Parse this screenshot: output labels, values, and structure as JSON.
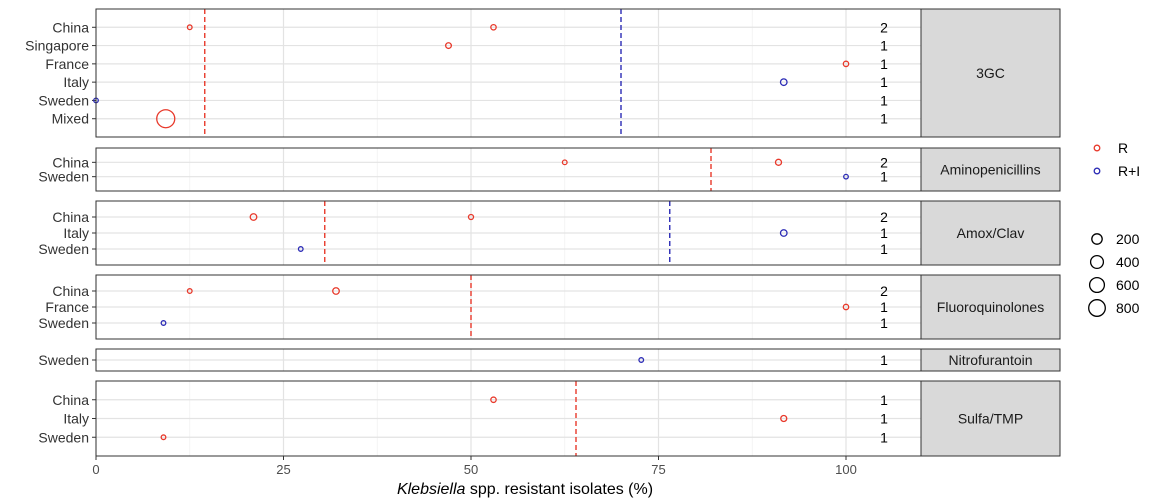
{
  "chart_data": {
    "type": "scatter",
    "xlabel_italic": "Klebsiella",
    "xlabel_rest": " spp. resistant isolates (%)",
    "xlim": [
      0,
      110
    ],
    "xticks": [
      0,
      25,
      50,
      75,
      100
    ],
    "grid": true,
    "legend_placement": "right",
    "colors": {
      "R": "#E8392B",
      "R+I": "#2B2BB5"
    },
    "series_legend": [
      "R",
      "R+I"
    ],
    "size_legend": [
      200,
      400,
      600,
      800
    ],
    "panels": [
      {
        "label": "3GC",
        "rows": [
          "China",
          "Singapore",
          "France",
          "Italy",
          "Sweden",
          "Mixed"
        ],
        "counts": [
          "2",
          "1",
          "1",
          "1",
          "1",
          "1"
        ],
        "ref_lines": [
          {
            "series": "R",
            "x": 14.5
          },
          {
            "series": "R+I",
            "x": 70.0
          }
        ],
        "points": [
          {
            "row": "China",
            "series": "R",
            "x": 12.5,
            "n": 60
          },
          {
            "row": "China",
            "series": "R",
            "x": 53.0,
            "n": 80
          },
          {
            "row": "Singapore",
            "series": "R",
            "x": 47.0,
            "n": 90
          },
          {
            "row": "France",
            "series": "R",
            "x": 100.0,
            "n": 80
          },
          {
            "row": "Italy",
            "series": "R+I",
            "x": 91.7,
            "n": 120
          },
          {
            "row": "Sweden",
            "series": "R+I",
            "x": 0.0,
            "n": 30
          },
          {
            "row": "Mixed",
            "series": "R",
            "x": 9.3,
            "n": 900
          }
        ]
      },
      {
        "label": "Aminopenicillins",
        "rows": [
          "China",
          "Sweden"
        ],
        "counts": [
          "2",
          "1"
        ],
        "ref_lines": [
          {
            "series": "R",
            "x": 82.0
          }
        ],
        "points": [
          {
            "row": "China",
            "series": "R",
            "x": 62.5,
            "n": 60
          },
          {
            "row": "China",
            "series": "R",
            "x": 91.0,
            "n": 100
          },
          {
            "row": "Sweden",
            "series": "R+I",
            "x": 100.0,
            "n": 30
          }
        ]
      },
      {
        "label": "Amox/Clav",
        "rows": [
          "China",
          "Italy",
          "Sweden"
        ],
        "counts": [
          "2",
          "1",
          "1"
        ],
        "ref_lines": [
          {
            "series": "R",
            "x": 30.5
          },
          {
            "series": "R+I",
            "x": 76.5
          }
        ],
        "points": [
          {
            "row": "China",
            "series": "R",
            "x": 21.0,
            "n": 120
          },
          {
            "row": "China",
            "series": "R",
            "x": 50.0,
            "n": 70
          },
          {
            "row": "Italy",
            "series": "R+I",
            "x": 91.7,
            "n": 120
          },
          {
            "row": "Sweden",
            "series": "R+I",
            "x": 27.3,
            "n": 40
          }
        ]
      },
      {
        "label": "Fluoroquinolones",
        "rows": [
          "China",
          "France",
          "Sweden"
        ],
        "counts": [
          "2",
          "1",
          "1"
        ],
        "ref_lines": [
          {
            "series": "R",
            "x": 50.0
          }
        ],
        "points": [
          {
            "row": "China",
            "series": "R",
            "x": 12.5,
            "n": 60
          },
          {
            "row": "China",
            "series": "R",
            "x": 32.0,
            "n": 120
          },
          {
            "row": "France",
            "series": "R",
            "x": 100.0,
            "n": 80
          },
          {
            "row": "Sweden",
            "series": "R+I",
            "x": 9.0,
            "n": 40
          }
        ]
      },
      {
        "label": "Nitrofurantoin",
        "rows": [
          "Sweden"
        ],
        "counts": [
          "1"
        ],
        "ref_lines": [],
        "points": [
          {
            "row": "Sweden",
            "series": "R+I",
            "x": 72.7,
            "n": 40
          }
        ]
      },
      {
        "label": "Sulfa/TMP",
        "rows": [
          "China",
          "Italy",
          "Sweden"
        ],
        "counts": [
          "1",
          "1",
          "1"
        ],
        "ref_lines": [
          {
            "series": "R",
            "x": 64.0
          }
        ],
        "points": [
          {
            "row": "China",
            "series": "R",
            "x": 53.0,
            "n": 80
          },
          {
            "row": "Italy",
            "series": "R",
            "x": 91.7,
            "n": 100
          },
          {
            "row": "Sweden",
            "series": "R",
            "x": 9.0,
            "n": 40
          }
        ]
      }
    ]
  }
}
